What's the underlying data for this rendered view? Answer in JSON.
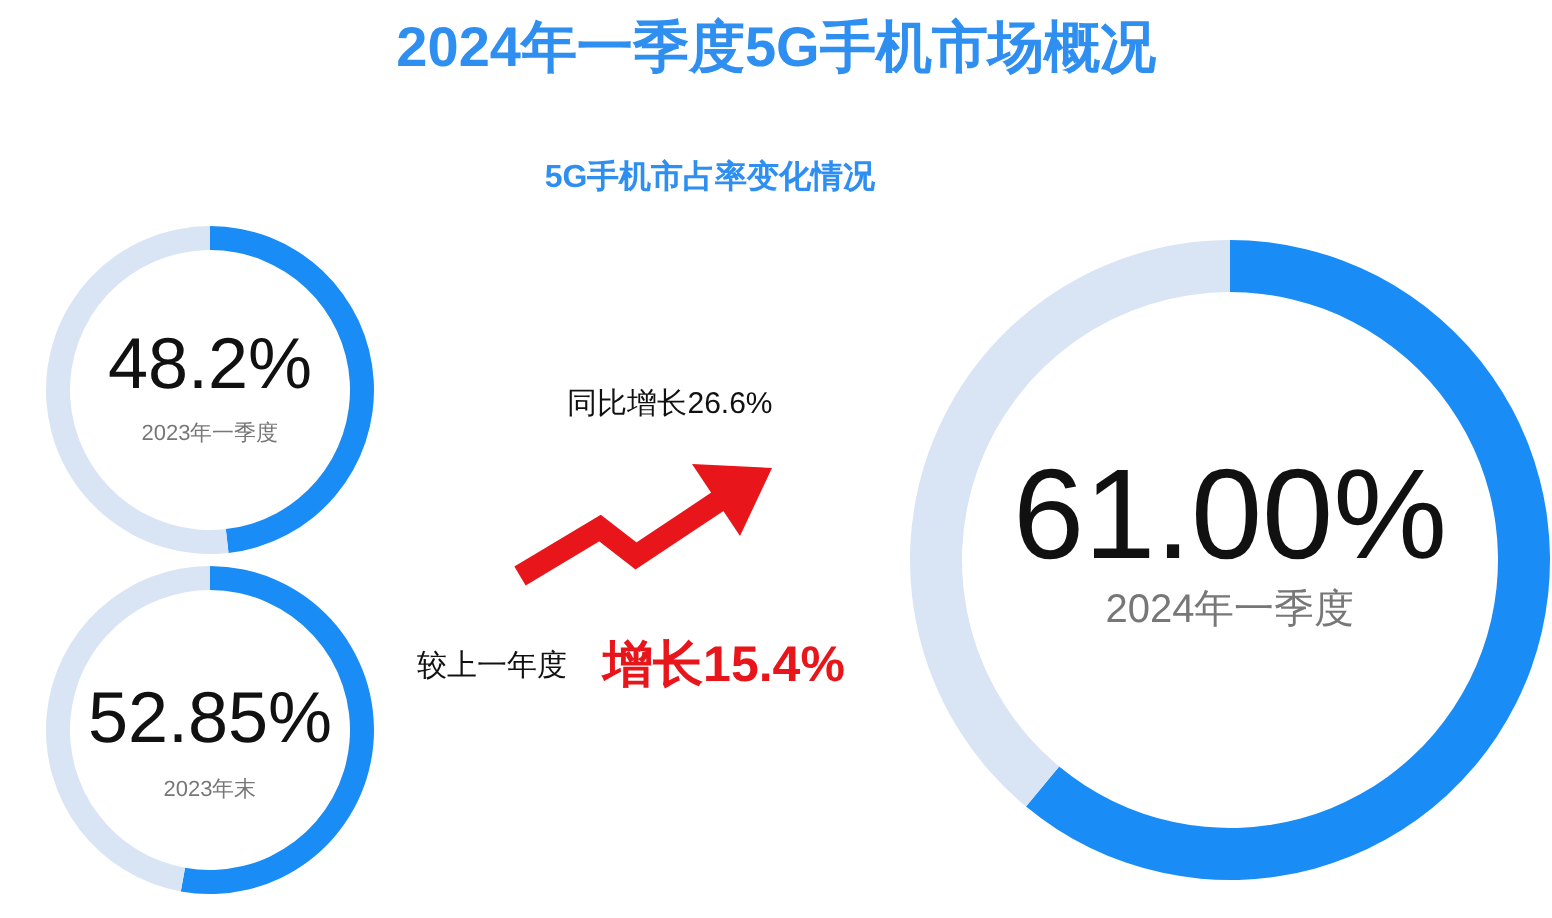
{
  "chart_data": [
    {
      "type": "other",
      "title": "2024年一季度5G手机市场概况",
      "subtitle": "5G手机市占率变化情况",
      "annotations": [
        "同比增长26.6%",
        "较上一年度",
        "增长15.4%"
      ]
    },
    {
      "type": "donut",
      "title": "2023年一季度",
      "categories": [
        null,
        null
      ],
      "values": [
        48.2,
        51.8
      ],
      "colors": [
        "#1a8cf5",
        "#d9e4f4"
      ],
      "value_labels": [
        "48.2%",
        null
      ]
    },
    {
      "type": "donut",
      "title": "2023年末",
      "categories": [
        null,
        null
      ],
      "values": [
        52.85,
        47.15
      ],
      "colors": [
        "#1a8cf5",
        "#d9e4f4"
      ],
      "value_labels": [
        "52.85%",
        null
      ]
    },
    {
      "type": "donut",
      "title": "2024年一季度",
      "categories": [
        null,
        null
      ],
      "values": [
        61.0,
        39.0
      ],
      "colors": [
        "#1a8cf5",
        "#d9e4f4"
      ],
      "value_labels": [
        "61.00%",
        null
      ]
    }
  ]
}
